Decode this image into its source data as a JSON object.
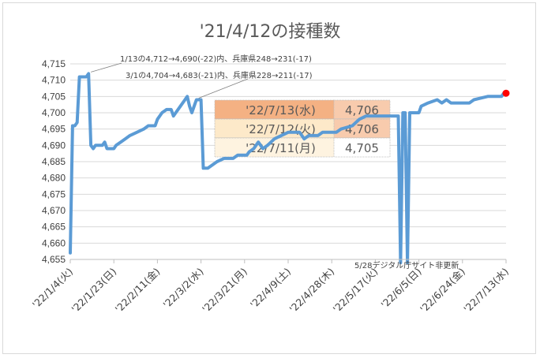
{
  "chart_data": {
    "type": "line",
    "title": "'21/4/12の接種数",
    "xlabel": "",
    "ylabel": "",
    "ylim": [
      4655,
      4715
    ],
    "yticks": [
      "4,655",
      "4,660",
      "4,665",
      "4,670",
      "4,675",
      "4,680",
      "4,685",
      "4,690",
      "4,695",
      "4,700",
      "4,705",
      "4,710",
      "4,715"
    ],
    "xticks": [
      "'22/1/4(火)",
      "'22/1/23(日)",
      "'22/2/11(金)",
      "'22/3/2(水)",
      "'22/3/21(月)",
      "'22/4/9(土)",
      "'22/4/28(木)",
      "'22/5/17(火)",
      "'22/6/5(日)",
      "'22/6/24(金)",
      "'22/7/13(水)"
    ],
    "grid": "horizontal",
    "legend": "none",
    "x_start": "2022-01-04",
    "series": [
      {
        "color": "#5b9bd5",
        "points": [
          [
            "2022-01-04",
            4657
          ],
          [
            "2022-01-05",
            4696
          ],
          [
            "2022-01-06",
            4696
          ],
          [
            "2022-01-07",
            4697
          ],
          [
            "2022-01-08",
            4711
          ],
          [
            "2022-01-09",
            4711
          ],
          [
            "2022-01-10",
            4711
          ],
          [
            "2022-01-11",
            4711
          ],
          [
            "2022-01-12",
            4712
          ],
          [
            "2022-01-13",
            4690
          ],
          [
            "2022-01-14",
            4689
          ],
          [
            "2022-01-15",
            4690
          ],
          [
            "2022-01-18",
            4690
          ],
          [
            "2022-01-19",
            4691
          ],
          [
            "2022-01-20",
            4689
          ],
          [
            "2022-01-23",
            4689
          ],
          [
            "2022-01-24",
            4690
          ],
          [
            "2022-01-26",
            4691
          ],
          [
            "2022-01-28",
            4692
          ],
          [
            "2022-01-30",
            4693
          ],
          [
            "2022-02-02",
            4694
          ],
          [
            "2022-02-05",
            4695
          ],
          [
            "2022-02-07",
            4696
          ],
          [
            "2022-02-10",
            4696
          ],
          [
            "2022-02-11",
            4698
          ],
          [
            "2022-02-13",
            4700
          ],
          [
            "2022-02-15",
            4701
          ],
          [
            "2022-02-17",
            4701
          ],
          [
            "2022-02-18",
            4699
          ],
          [
            "2022-02-19",
            4700
          ],
          [
            "2022-02-21",
            4702
          ],
          [
            "2022-02-23",
            4704
          ],
          [
            "2022-02-24",
            4705
          ],
          [
            "2022-02-25",
            4702
          ],
          [
            "2022-02-26",
            4700
          ],
          [
            "2022-02-27",
            4702
          ],
          [
            "2022-02-28",
            4704
          ],
          [
            "2022-03-01",
            4704
          ],
          [
            "2022-03-02",
            4704
          ],
          [
            "2022-03-03",
            4683
          ],
          [
            "2022-03-05",
            4683
          ],
          [
            "2022-03-07",
            4684
          ],
          [
            "2022-03-09",
            4685
          ],
          [
            "2022-03-12",
            4686
          ],
          [
            "2022-03-16",
            4686
          ],
          [
            "2022-03-18",
            4687
          ],
          [
            "2022-03-22",
            4687
          ],
          [
            "2022-03-23",
            4688
          ],
          [
            "2022-03-25",
            4689
          ],
          [
            "2022-03-27",
            4691
          ],
          [
            "2022-03-29",
            4689
          ],
          [
            "2022-03-31",
            4690
          ],
          [
            "2022-04-03",
            4692
          ],
          [
            "2022-04-06",
            4693
          ],
          [
            "2022-04-09",
            4694
          ],
          [
            "2022-04-14",
            4694
          ],
          [
            "2022-04-16",
            4692
          ],
          [
            "2022-04-18",
            4693
          ],
          [
            "2022-04-22",
            4693
          ],
          [
            "2022-04-24",
            4694
          ],
          [
            "2022-04-30",
            4694
          ],
          [
            "2022-05-02",
            4695
          ],
          [
            "2022-05-07",
            4696
          ],
          [
            "2022-05-10",
            4698
          ],
          [
            "2022-05-13",
            4699
          ],
          [
            "2022-05-18",
            4699
          ],
          [
            "2022-05-24",
            4699
          ],
          [
            "2022-05-27",
            4699
          ],
          [
            "2022-05-28",
            4653
          ],
          [
            "2022-05-29",
            4700
          ],
          [
            "2022-05-30",
            4700
          ],
          [
            "2022-05-31",
            4653
          ],
          [
            "2022-06-01",
            4700
          ],
          [
            "2022-06-05",
            4700
          ],
          [
            "2022-06-06",
            4702
          ],
          [
            "2022-06-09",
            4703
          ],
          [
            "2022-06-13",
            4704
          ],
          [
            "2022-06-15",
            4703
          ],
          [
            "2022-06-17",
            4704
          ],
          [
            "2022-06-19",
            4703
          ],
          [
            "2022-06-23",
            4703
          ],
          [
            "2022-06-27",
            4703
          ],
          [
            "2022-06-29",
            4704
          ],
          [
            "2022-07-05",
            4705
          ],
          [
            "2022-07-09",
            4705
          ],
          [
            "2022-07-11",
            4705
          ],
          [
            "2022-07-12",
            4706
          ],
          [
            "2022-07-13",
            4706
          ]
        ]
      }
    ],
    "end_marker": {
      "date": "2022-07-13",
      "value": 4706,
      "color": "#ff0000"
    },
    "annotations": [
      {
        "text": "1/13の4,712→4,690(-22)内、兵庫県248→231(-17)",
        "date": "2022-01-13",
        "value": 4712
      },
      {
        "text": "3/1の4,704→4,683(-21)内、兵庫県228→211(-17)",
        "date": "2022-03-01",
        "value": 4704
      },
      {
        "text": "5/28デジタル庁サイト非更新",
        "date": "2022-05-28",
        "value": 4655
      }
    ],
    "table": [
      {
        "date": "'22/7/13(水)",
        "value": "4,706",
        "date_color": "#f4b183",
        "value_color": "#f8cbad"
      },
      {
        "date": "'22/7/12(火)",
        "value": "4,706",
        "date_color": "#fde9c9",
        "value_color": "#f8cbad"
      },
      {
        "date": "'22/7/11(月)",
        "value": "4,705",
        "date_color": "#fef3e0",
        "value_color": "#ffffff"
      }
    ]
  }
}
